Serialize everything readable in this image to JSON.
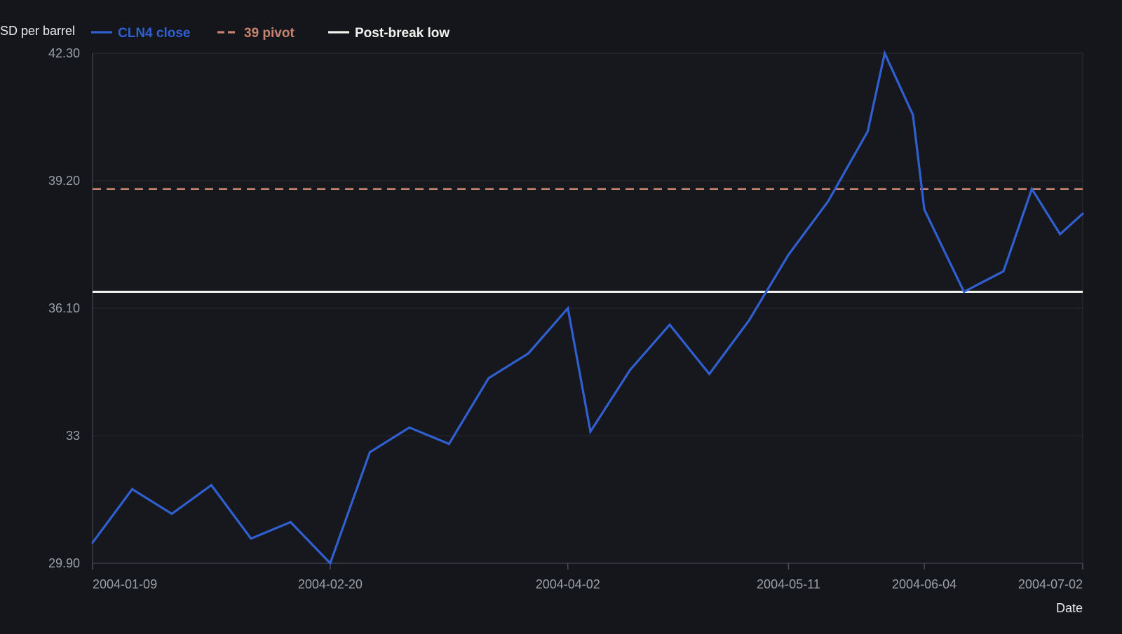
{
  "chart_data": {
    "type": "line",
    "title": "",
    "xlabel": "Date",
    "ylabel": "SD per barrel",
    "x_range": [
      "2004-01-09",
      "2004-07-02"
    ],
    "ylim": [
      29.9,
      42.3
    ],
    "y_ticks": [
      29.9,
      33,
      36.1,
      39.2,
      42.3
    ],
    "y_tick_labels": [
      "29.90",
      "33",
      "36.10",
      "39.20",
      "42.30"
    ],
    "x_ticks": [
      "2004-01-09",
      "2004-02-20",
      "2004-04-02",
      "2004-05-11",
      "2004-06-04",
      "2004-07-02"
    ],
    "grid": "horizontal",
    "legend_position": "top-left",
    "series": [
      {
        "name": "CLN4 close",
        "color": "#2f5fd0",
        "style": "solid",
        "points": [
          {
            "x": "2004-01-09",
            "y": 30.4
          },
          {
            "x": "2004-01-16",
            "y": 31.7
          },
          {
            "x": "2004-01-23",
            "y": 31.1
          },
          {
            "x": "2004-01-30",
            "y": 31.8
          },
          {
            "x": "2004-02-06",
            "y": 30.5
          },
          {
            "x": "2004-02-13",
            "y": 30.9
          },
          {
            "x": "2004-02-20",
            "y": 29.9
          },
          {
            "x": "2004-02-27",
            "y": 32.6
          },
          {
            "x": "2004-03-05",
            "y": 33.2
          },
          {
            "x": "2004-03-12",
            "y": 32.8
          },
          {
            "x": "2004-03-19",
            "y": 34.4
          },
          {
            "x": "2004-03-26",
            "y": 35.0
          },
          {
            "x": "2004-04-02",
            "y": 36.1
          },
          {
            "x": "2004-04-06",
            "y": 33.1
          },
          {
            "x": "2004-04-13",
            "y": 34.6
          },
          {
            "x": "2004-04-20",
            "y": 35.7
          },
          {
            "x": "2004-04-27",
            "y": 34.5
          },
          {
            "x": "2004-05-04",
            "y": 35.8
          },
          {
            "x": "2004-05-11",
            "y": 37.4
          },
          {
            "x": "2004-05-18",
            "y": 38.7
          },
          {
            "x": "2004-05-25",
            "y": 40.4
          },
          {
            "x": "2004-05-28",
            "y": 42.3
          },
          {
            "x": "2004-06-02",
            "y": 40.8
          },
          {
            "x": "2004-06-04",
            "y": 38.5
          },
          {
            "x": "2004-06-11",
            "y": 36.5
          },
          {
            "x": "2004-06-18",
            "y": 37.0
          },
          {
            "x": "2004-06-23",
            "y": 39.0
          },
          {
            "x": "2004-06-28",
            "y": 37.9
          },
          {
            "x": "2004-07-02",
            "y": 38.4
          }
        ]
      },
      {
        "name": "39 pivot",
        "color": "#c8836f",
        "style": "dashed",
        "y": 39.0
      },
      {
        "name": "Post-break low",
        "color": "#f1f1ee",
        "style": "solid",
        "y": 36.5
      }
    ]
  }
}
